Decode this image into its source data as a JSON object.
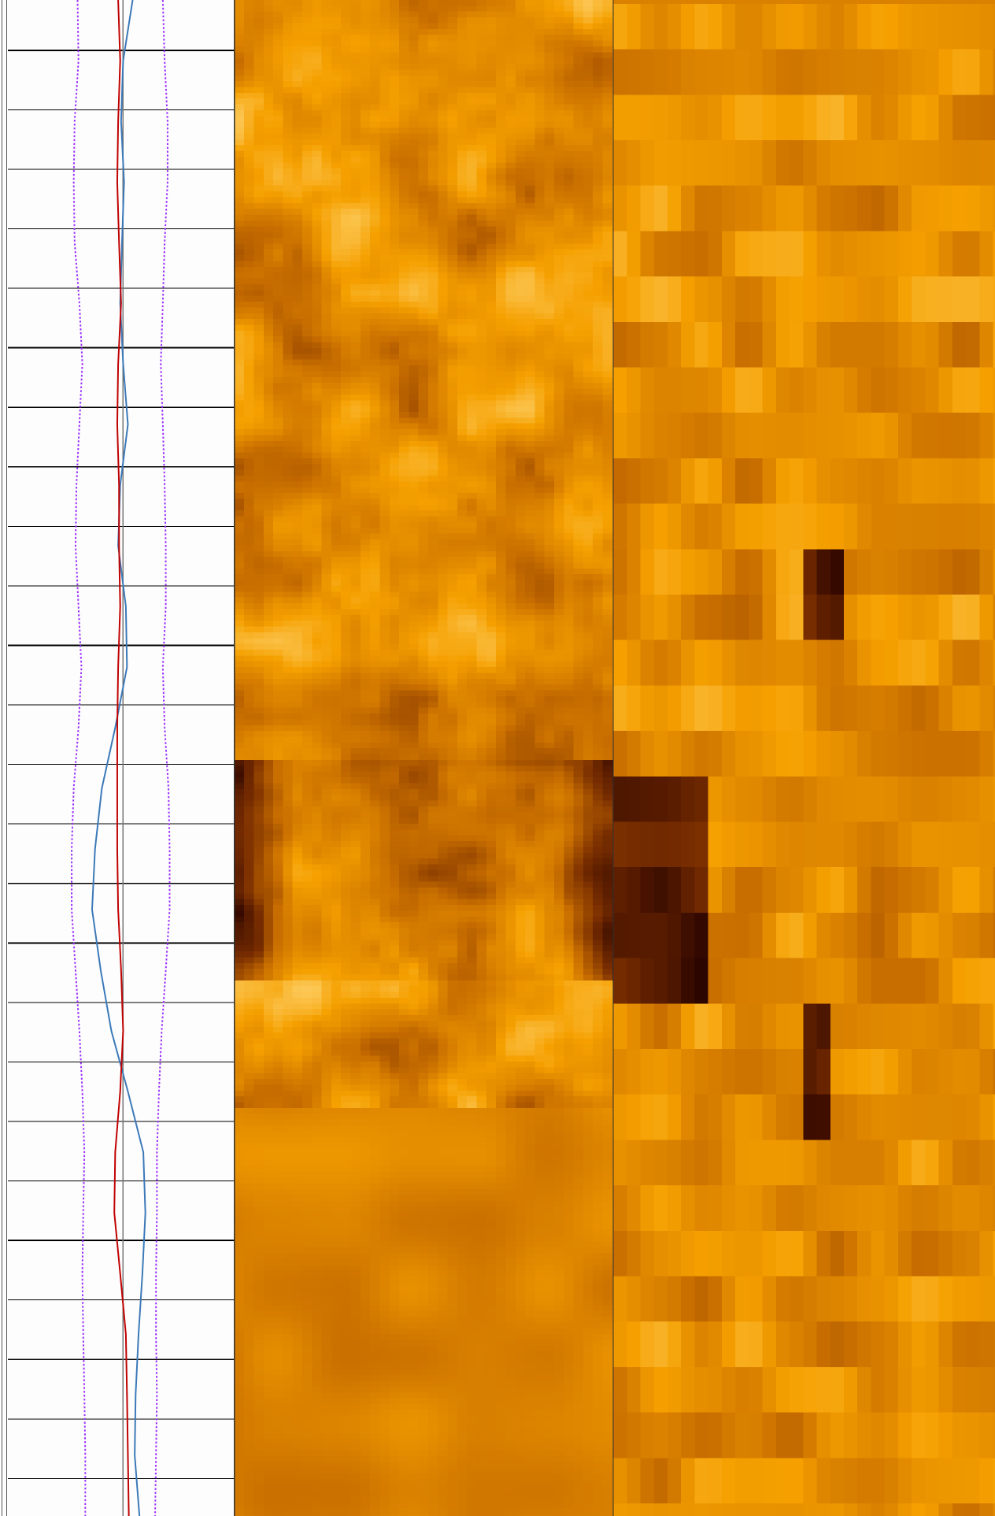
{
  "chart_data": {
    "type": "line",
    "x": [
      0,
      4,
      8,
      12,
      16,
      20,
      24,
      28,
      32,
      36,
      40,
      44,
      48,
      52,
      56,
      60,
      64,
      68,
      72,
      76,
      80,
      84,
      88,
      92,
      96,
      100
    ],
    "xlim": [
      0,
      100
    ],
    "ylim": [
      0,
      100
    ],
    "series": [
      {
        "color": "#3a78b8",
        "style": "solid",
        "values": [
          55.1,
          50.9,
          50.0,
          51.3,
          50.4,
          49.6,
          50.9,
          53.0,
          49.6,
          48.7,
          52.1,
          52.6,
          47.4,
          41.5,
          38.5,
          37.2,
          41.0,
          45.7,
          53.0,
          59.8,
          60.7,
          59.4,
          57.7,
          56.4,
          56.0,
          58.1
        ]
      },
      {
        "color": "#c00000",
        "style": "solid",
        "values": [
          48.7,
          49.6,
          48.7,
          48.3,
          49.1,
          50.0,
          48.7,
          48.3,
          49.1,
          49.1,
          49.6,
          48.7,
          48.3,
          48.3,
          48.3,
          48.7,
          50.0,
          50.9,
          49.6,
          47.4,
          47.0,
          49.6,
          52.1,
          52.6,
          53.0,
          53.4
        ]
      },
      {
        "color": "#9b30ff",
        "style": "dotted",
        "values": [
          30.8,
          31.2,
          29.5,
          29.1,
          29.5,
          31.6,
          32.9,
          31.6,
          30.3,
          29.9,
          31.2,
          32.5,
          31.2,
          29.1,
          28.2,
          28.2,
          29.9,
          31.6,
          32.9,
          33.8,
          33.3,
          32.9,
          33.3,
          33.8,
          34.2,
          34.2
        ]
      },
      {
        "color": "#9b30ff",
        "style": "dotted",
        "values": [
          68.4,
          69.2,
          70.5,
          70.5,
          69.2,
          68.4,
          67.5,
          68.4,
          69.2,
          69.7,
          69.7,
          68.4,
          69.2,
          70.9,
          71.4,
          71.4,
          69.7,
          67.9,
          66.7,
          65.8,
          65.8,
          65.4,
          65.4,
          65.8,
          65.4,
          65.0
        ]
      }
    ]
  }
}
